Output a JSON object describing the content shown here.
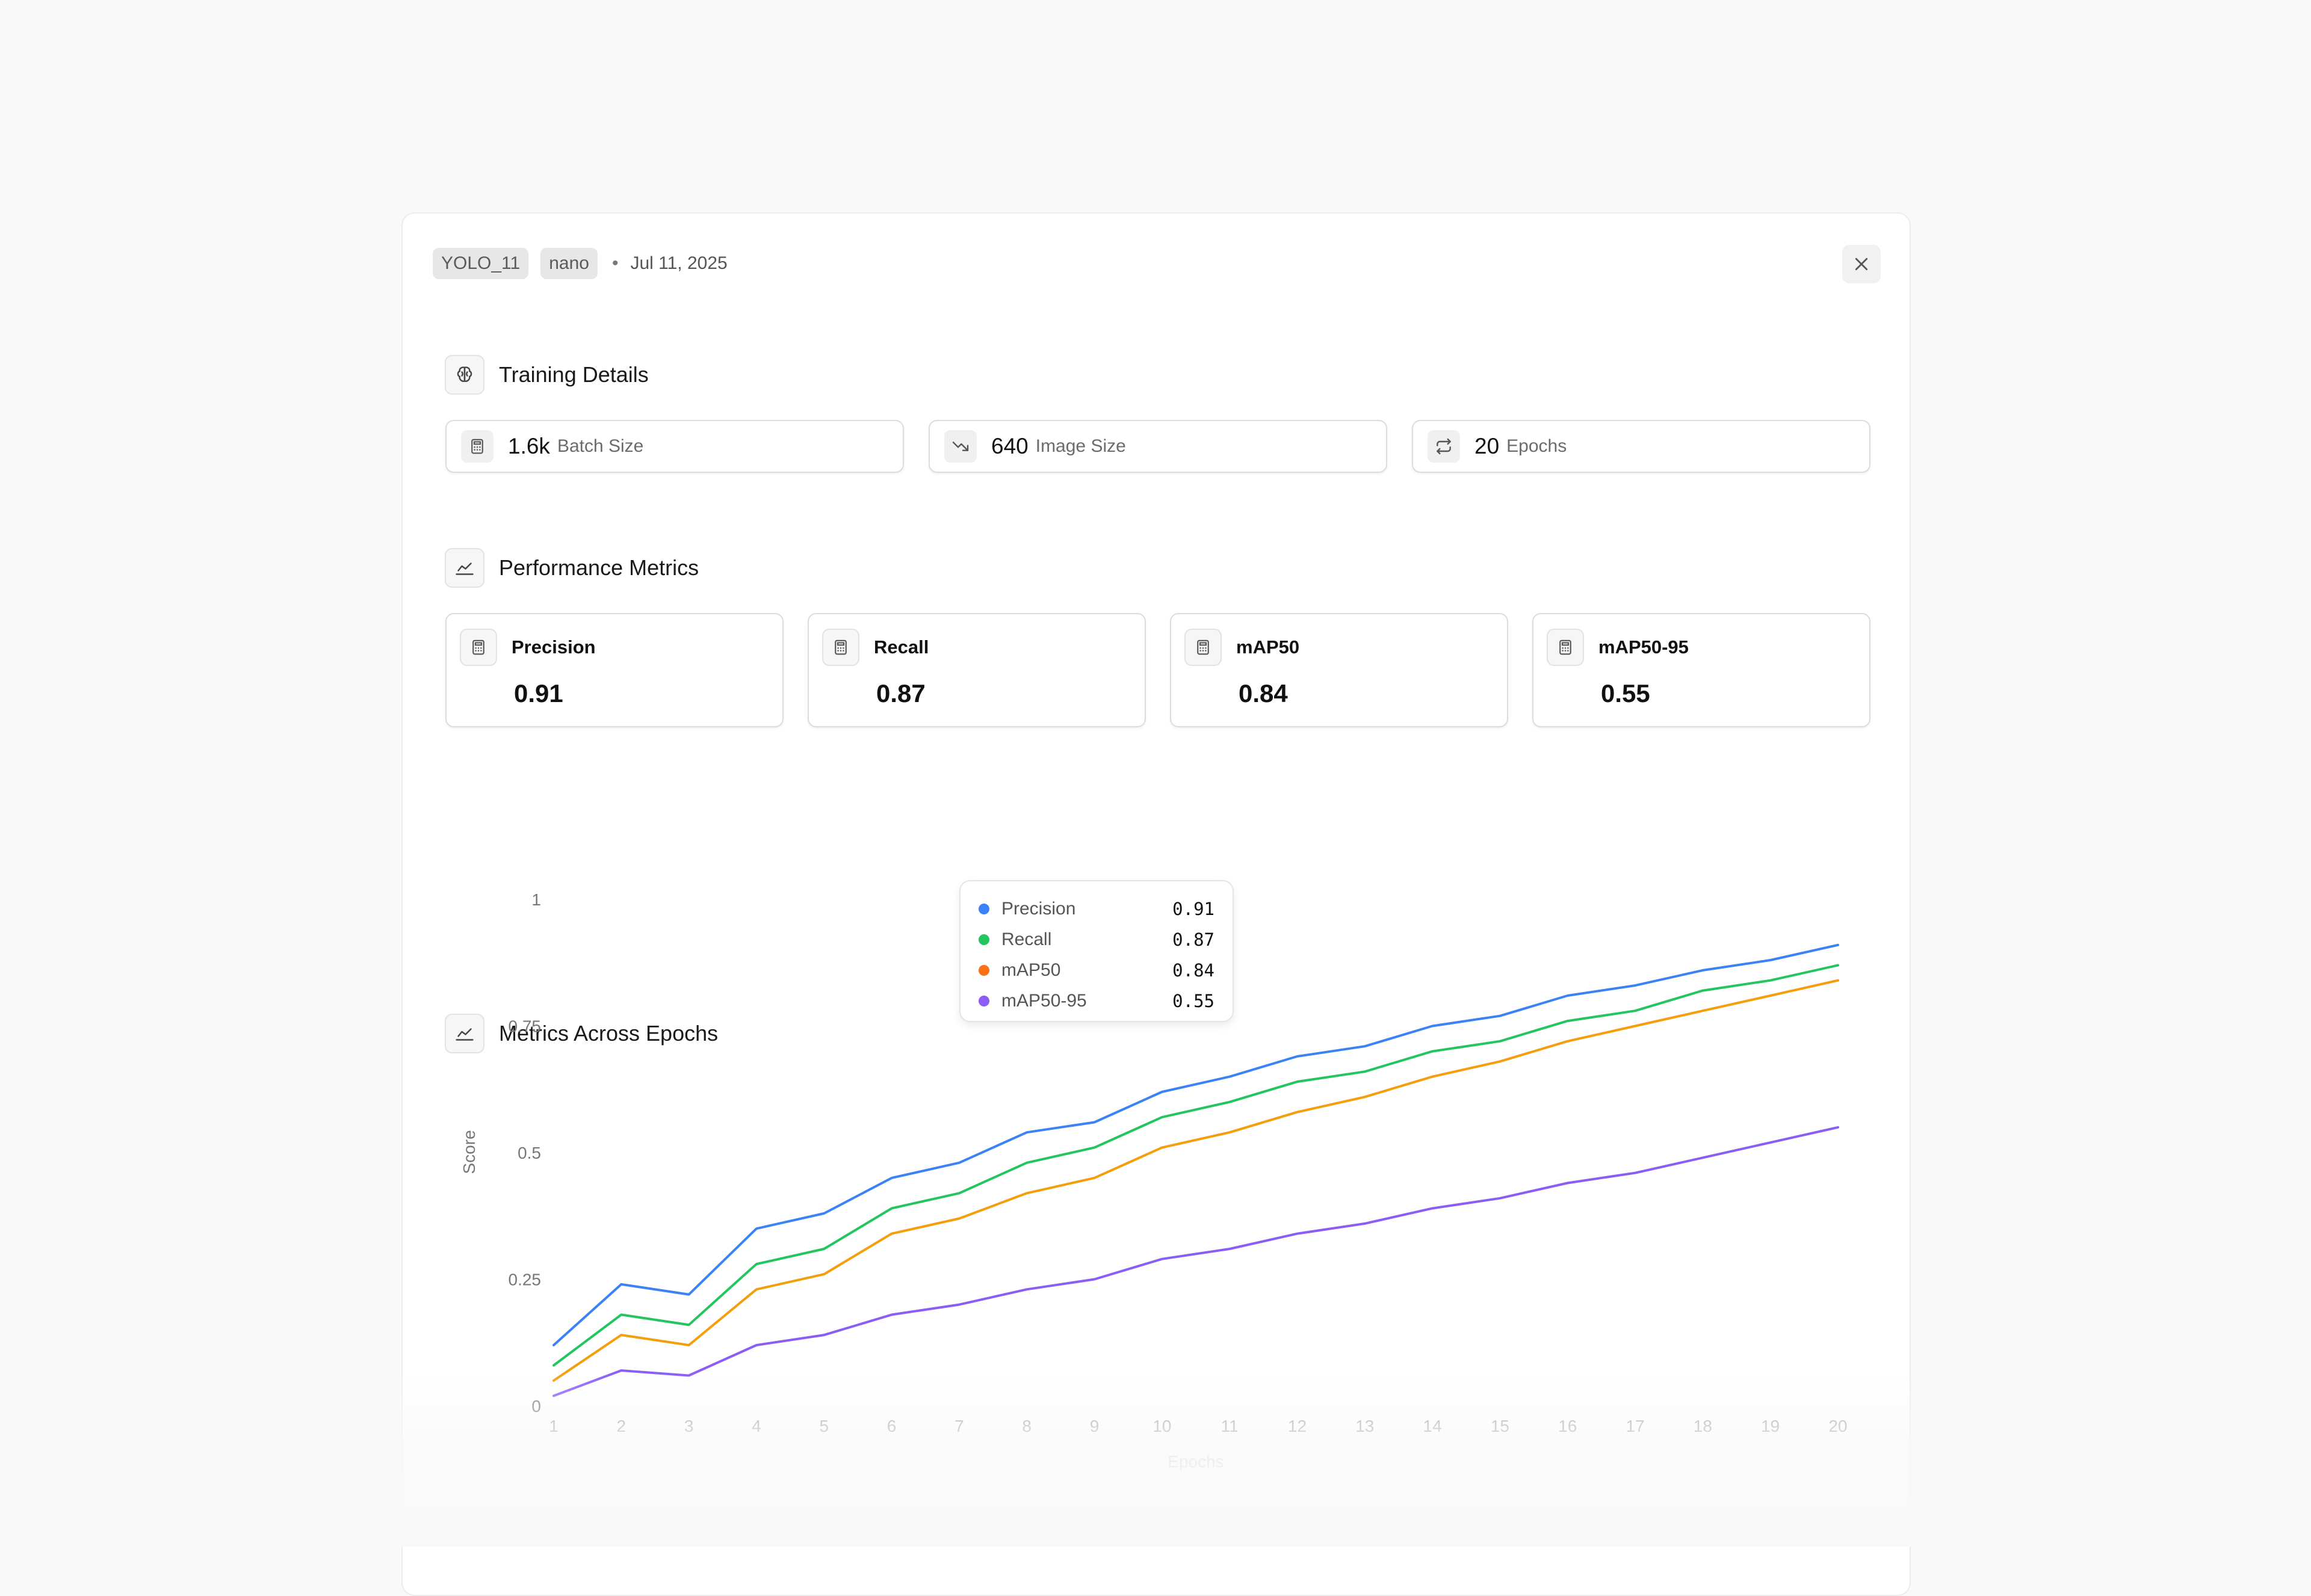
{
  "header": {
    "model_tag": "YOLO_11",
    "size_tag": "nano",
    "separator": "•",
    "date": "Jul 11, 2025"
  },
  "training_details": {
    "title": "Training Details",
    "cards": [
      {
        "value": "1.6k",
        "label": "Batch Size",
        "icon": "calculator-icon"
      },
      {
        "value": "640",
        "label": "Image Size",
        "icon": "trend-down-icon"
      },
      {
        "value": "20",
        "label": "Epochs",
        "icon": "repeat-icon"
      }
    ]
  },
  "performance": {
    "title": "Performance Metrics",
    "cards": [
      {
        "name": "Precision",
        "value": "0.91"
      },
      {
        "name": "Recall",
        "value": "0.87"
      },
      {
        "name": "mAP50",
        "value": "0.84"
      },
      {
        "name": "mAP50-95",
        "value": "0.55"
      }
    ]
  },
  "epochs_section": {
    "title": "Metrics Across Epochs"
  },
  "tooltip": {
    "rows": [
      {
        "name": "Precision",
        "value": "0.91",
        "color": "#3b82f6"
      },
      {
        "name": "Recall",
        "value": "0.87",
        "color": "#22c55e"
      },
      {
        "name": "mAP50",
        "value": "0.84",
        "color": "#f97316"
      },
      {
        "name": "mAP50-95",
        "value": "0.55",
        "color": "#8b5cf6"
      }
    ]
  },
  "chart_data": {
    "type": "line",
    "xlabel": "Epochs",
    "ylabel": "Score",
    "x": [
      1,
      2,
      3,
      4,
      5,
      6,
      7,
      8,
      9,
      10,
      11,
      12,
      13,
      14,
      15,
      16,
      17,
      18,
      19,
      20
    ],
    "ylim": [
      0,
      1
    ],
    "yticks": [
      0,
      0.25,
      0.5,
      0.75,
      1
    ],
    "ytick_labels": [
      "0",
      "0.25",
      "0.5",
      "0.75",
      "1"
    ],
    "grid": false,
    "series": [
      {
        "name": "Precision",
        "color": "#3b82f6",
        "values": [
          0.12,
          0.24,
          0.22,
          0.35,
          0.38,
          0.45,
          0.48,
          0.54,
          0.56,
          0.62,
          0.65,
          0.69,
          0.71,
          0.75,
          0.77,
          0.81,
          0.83,
          0.86,
          0.88,
          0.91
        ]
      },
      {
        "name": "Recall",
        "color": "#22c55e",
        "values": [
          0.08,
          0.18,
          0.16,
          0.28,
          0.31,
          0.39,
          0.42,
          0.48,
          0.51,
          0.57,
          0.6,
          0.64,
          0.66,
          0.7,
          0.72,
          0.76,
          0.78,
          0.82,
          0.84,
          0.87
        ]
      },
      {
        "name": "mAP50",
        "color": "#f59e0b",
        "values": [
          0.05,
          0.14,
          0.12,
          0.23,
          0.26,
          0.34,
          0.37,
          0.42,
          0.45,
          0.51,
          0.54,
          0.58,
          0.61,
          0.65,
          0.68,
          0.72,
          0.75,
          0.78,
          0.81,
          0.84
        ]
      },
      {
        "name": "mAP50-95",
        "color": "#8b5cf6",
        "values": [
          0.02,
          0.07,
          0.06,
          0.12,
          0.14,
          0.18,
          0.2,
          0.23,
          0.25,
          0.29,
          0.31,
          0.34,
          0.36,
          0.39,
          0.41,
          0.44,
          0.46,
          0.49,
          0.52,
          0.55
        ]
      }
    ]
  }
}
